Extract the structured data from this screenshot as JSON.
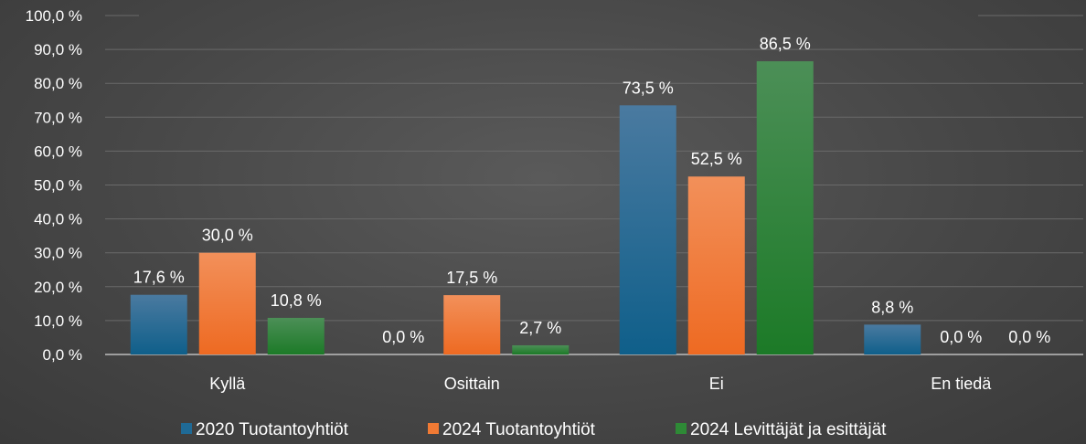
{
  "chart_data": {
    "type": "bar",
    "categories": [
      "Kyllä",
      "Osittain",
      "Ei",
      "En tiedä"
    ],
    "series": [
      {
        "name": "2020 Tuotantoyhtiöt",
        "values": [
          17.6,
          0.0,
          73.5,
          8.8
        ],
        "labels": [
          "17,6 %",
          "0,0 %",
          "73,5 %",
          "8,8 %"
        ],
        "color": "#1f6a96"
      },
      {
        "name": "2024 Tuotantoyhtiöt",
        "values": [
          30.0,
          17.5,
          52.5,
          0.0
        ],
        "labels": [
          "30,0 %",
          "17,5 %",
          "52,5 %",
          "0,0 %"
        ],
        "color": "#f07a34"
      },
      {
        "name": "2024 Levittäjät ja esittäjät",
        "values": [
          10.8,
          2.7,
          86.5,
          0.0
        ],
        "labels": [
          "10,8 %",
          "2,7 %",
          "86,5 %",
          "0,0 %"
        ],
        "color": "#2e8a36"
      }
    ],
    "yticks": [
      "0,0 %",
      "10,0 %",
      "20,0 %",
      "30,0 %",
      "40,0 %",
      "50,0 %",
      "60,0 %",
      "70,0 %",
      "80,0 %",
      "90,0 %",
      "100,0 %"
    ],
    "ylim": [
      0,
      100
    ],
    "grid": true,
    "legend": "bottom",
    "title": "",
    "xlabel": "",
    "ylabel": ""
  }
}
